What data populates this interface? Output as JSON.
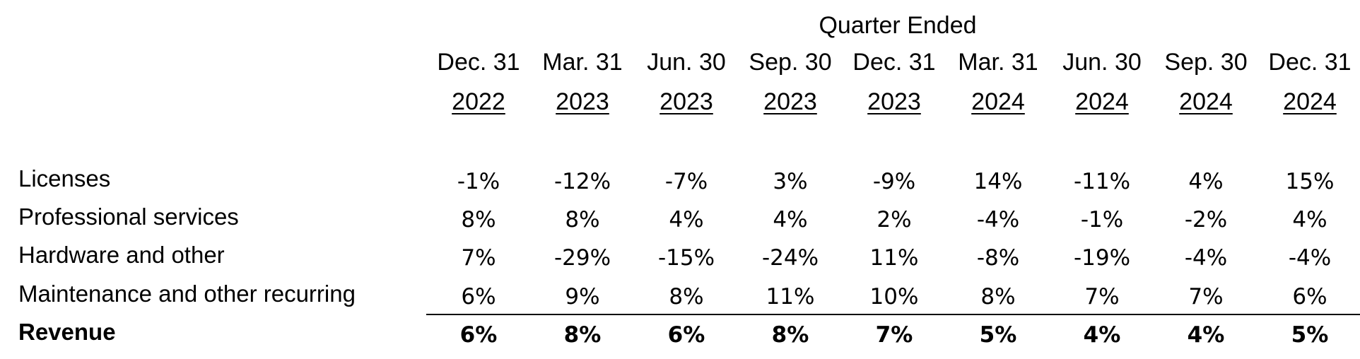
{
  "table": {
    "group_header": "Quarter Ended",
    "columns": [
      {
        "month": "Dec. 31",
        "year": "2022"
      },
      {
        "month": "Mar. 31",
        "year": "2023"
      },
      {
        "month": "Jun. 30",
        "year": "2023"
      },
      {
        "month": "Sep. 30",
        "year": "2023"
      },
      {
        "month": "Dec. 31",
        "year": "2023"
      },
      {
        "month": "Mar. 31",
        "year": "2024"
      },
      {
        "month": "Jun. 30",
        "year": "2024"
      },
      {
        "month": "Sep. 30",
        "year": "2024"
      },
      {
        "month": "Dec. 31",
        "year": "2024"
      }
    ],
    "rows": [
      {
        "label": "Licenses",
        "values": [
          "-1%",
          "-12%",
          "-7%",
          "3%",
          "-9%",
          "14%",
          "-11%",
          "4%",
          "15%"
        ]
      },
      {
        "label": "Professional services",
        "values": [
          "8%",
          "8%",
          "4%",
          "4%",
          "2%",
          "-4%",
          "-1%",
          "-2%",
          "4%"
        ]
      },
      {
        "label": "Hardware and other",
        "values": [
          "7%",
          "-29%",
          "-15%",
          "-24%",
          "11%",
          "-8%",
          "-19%",
          "-4%",
          "-4%"
        ]
      },
      {
        "label": "Maintenance and other recurring",
        "values": [
          "6%",
          "9%",
          "8%",
          "11%",
          "10%",
          "8%",
          "7%",
          "7%",
          "6%"
        ]
      },
      {
        "label": "Revenue",
        "values": [
          "6%",
          "8%",
          "6%",
          "8%",
          "7%",
          "5%",
          "4%",
          "4%",
          "5%"
        ],
        "emphasis": "bold"
      }
    ]
  }
}
